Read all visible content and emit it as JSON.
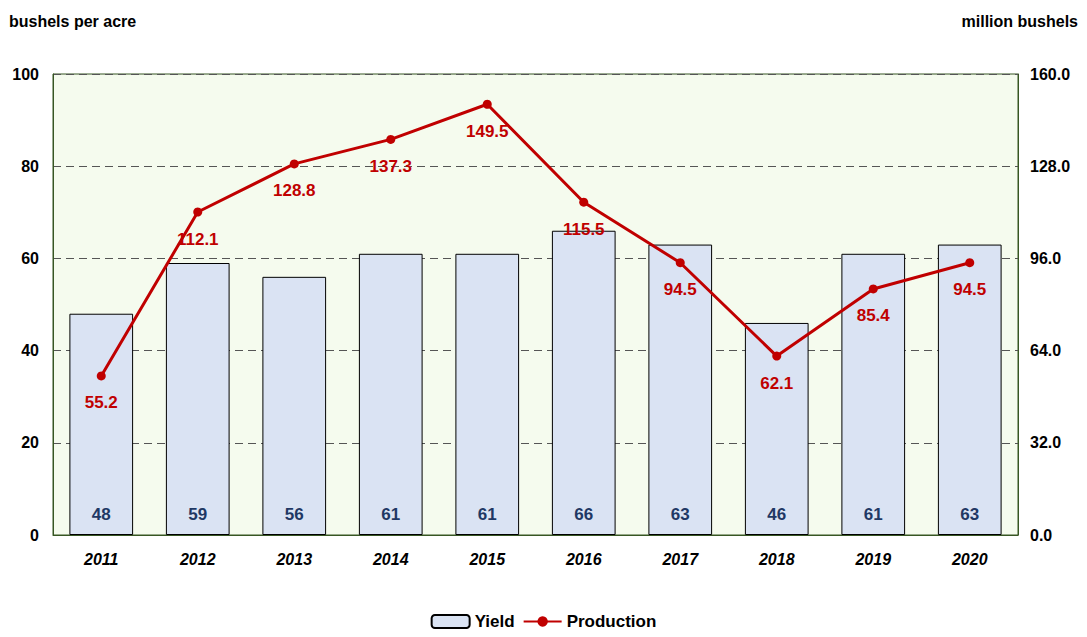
{
  "chart_data": {
    "type": "bar",
    "ylabel": "bushels per acre",
    "y2label": "million bushels",
    "categories": [
      "2011",
      "2012",
      "2013",
      "2014",
      "2015",
      "2016",
      "2017",
      "2018",
      "2019",
      "2020"
    ],
    "series": [
      {
        "name": "Yield",
        "type": "bar",
        "color": "#dae3f3",
        "values": [
          48,
          59,
          56,
          61,
          61,
          66,
          63,
          46,
          61,
          63
        ]
      },
      {
        "name": "Production",
        "type": "line",
        "axis": "y2",
        "color": "#c00000",
        "marker": "circle",
        "values": [
          55.2,
          112.1,
          128.8,
          137.3,
          149.5,
          115.5,
          94.5,
          62.1,
          85.4,
          94.5
        ]
      }
    ],
    "ylim": [
      0,
      100
    ],
    "yticks": [
      0,
      20,
      40,
      60,
      80,
      100
    ],
    "y2lim": [
      0,
      160
    ],
    "y2ticks": [
      {
        "value": 0,
        "label": "0.0"
      },
      {
        "value": 32,
        "label": "32.0"
      },
      {
        "value": 64,
        "label": "64.0"
      },
      {
        "value": 96,
        "label": "96.0"
      },
      {
        "value": 128,
        "label": "128.0"
      },
      {
        "value": 160,
        "label": "160.0"
      }
    ],
    "grid": true,
    "legend": "bottom",
    "data_labels": true
  }
}
